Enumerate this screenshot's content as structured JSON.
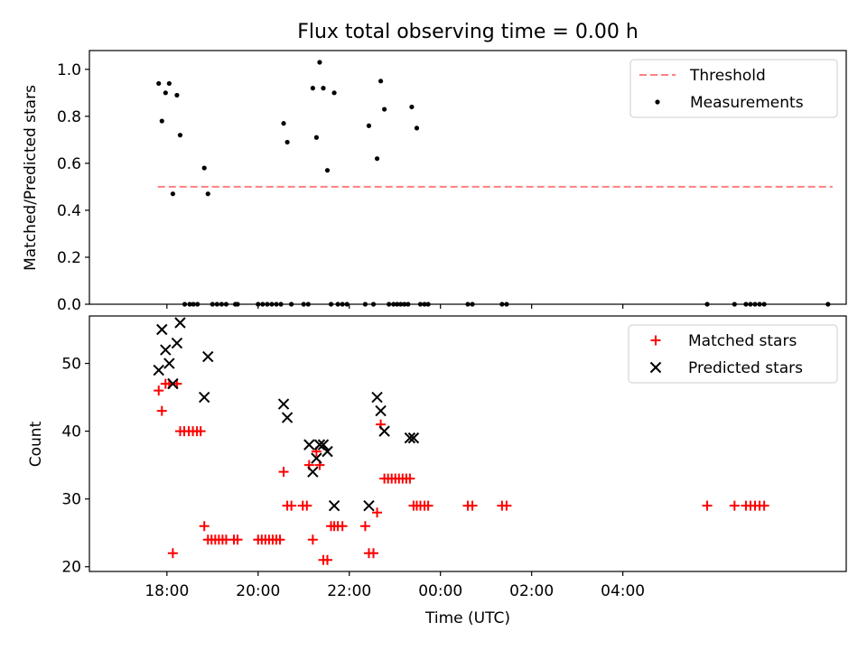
{
  "chart_data": {
    "type": "scatter",
    "title": "Flux total observing time = 0.00 h",
    "xlabel": "Time (UTC)",
    "x_unit": "hours since 00:00 UTC of first night",
    "xlim": [
      16.3,
      32.9
    ],
    "x_ticks": [
      {
        "value": 18,
        "label": "18:00"
      },
      {
        "value": 20,
        "label": "20:00"
      },
      {
        "value": 22,
        "label": "22:00"
      },
      {
        "value": 24,
        "label": "00:00"
      },
      {
        "value": 26,
        "label": "02:00"
      },
      {
        "value": 28,
        "label": "04:00"
      }
    ],
    "panels": [
      {
        "id": "ratio",
        "ylabel": "Matched/Predicted stars",
        "ylim": [
          0.0,
          1.08
        ],
        "y_ticks": [
          {
            "value": 0.0,
            "label": "0.0"
          },
          {
            "value": 0.2,
            "label": "0.2"
          },
          {
            "value": 0.4,
            "label": "0.4"
          },
          {
            "value": 0.6,
            "label": "0.6"
          },
          {
            "value": 0.8,
            "label": "0.8"
          },
          {
            "value": 1.0,
            "label": "1.0"
          }
        ],
        "legend_position": "top-right",
        "series": [
          {
            "name": "Threshold",
            "kind": "line",
            "style": "dashed",
            "color": "#ff7f7f",
            "x": [
              17.8,
              32.6
            ],
            "y": [
              0.5,
              0.5
            ]
          },
          {
            "name": "Measurements",
            "kind": "scatter",
            "marker": "dot",
            "color": "#000000",
            "x": [
              17.82,
              17.89,
              17.97,
              18.05,
              18.13,
              18.22,
              18.29,
              18.39,
              18.5,
              18.58,
              18.67,
              18.82,
              18.9,
              19.0,
              19.1,
              19.2,
              19.3,
              19.5,
              19.55,
              20.0,
              20.1,
              20.2,
              20.3,
              20.4,
              20.5,
              20.56,
              20.64,
              20.73,
              21.0,
              21.1,
              21.2,
              21.28,
              21.35,
              21.43,
              21.52,
              21.6,
              21.67,
              21.75,
              21.85,
              21.95,
              22.35,
              22.43,
              22.53,
              22.61,
              22.69,
              22.77,
              22.87,
              22.97,
              23.05,
              23.13,
              23.21,
              23.29,
              23.37,
              23.48,
              23.56,
              23.65,
              23.73,
              24.6,
              24.7,
              25.35,
              25.45,
              29.85,
              30.45,
              30.7,
              30.8,
              30.9,
              31.0,
              31.1,
              32.5
            ],
            "y": [
              0.94,
              0.78,
              0.9,
              0.94,
              0.47,
              0.89,
              0.72,
              0.0,
              0.0,
              0.0,
              0.0,
              0.58,
              0.47,
              0.0,
              0.0,
              0.0,
              0.0,
              0.0,
              0.0,
              0.0,
              0.0,
              0.0,
              0.0,
              0.0,
              0.0,
              0.77,
              0.69,
              0.0,
              0.0,
              0.0,
              0.92,
              0.71,
              1.03,
              0.92,
              0.57,
              0.0,
              0.9,
              0.0,
              0.0,
              0.0,
              0.0,
              0.76,
              0.0,
              0.62,
              0.95,
              0.83,
              0.0,
              0.0,
              0.0,
              0.0,
              0.0,
              0.0,
              0.84,
              0.75,
              0.0,
              0.0,
              0.0,
              0.0,
              0.0,
              0.0,
              0.0,
              0.0,
              0.0,
              0.0,
              0.0,
              0.0,
              0.0,
              0.0,
              0.0
            ]
          }
        ]
      },
      {
        "id": "counts",
        "ylabel": "Count",
        "ylim": [
          19.3,
          57.0
        ],
        "y_ticks": [
          {
            "value": 20,
            "label": "20"
          },
          {
            "value": 30,
            "label": "30"
          },
          {
            "value": 40,
            "label": "40"
          },
          {
            "value": 50,
            "label": "50"
          }
        ],
        "legend_position": "top-right",
        "series": [
          {
            "name": "Matched stars",
            "kind": "scatter",
            "marker": "plus",
            "color": "#ff0000",
            "x": [
              17.82,
              17.89,
              17.97,
              18.05,
              18.13,
              18.22,
              18.29,
              18.38,
              18.48,
              18.57,
              18.66,
              18.74,
              18.82,
              18.9,
              18.98,
              19.06,
              19.14,
              19.22,
              19.3,
              19.47,
              19.55,
              20.0,
              20.08,
              20.16,
              20.24,
              20.32,
              20.4,
              20.48,
              20.56,
              20.64,
              20.73,
              20.98,
              21.07,
              21.12,
              21.2,
              21.28,
              21.35,
              21.43,
              21.52,
              21.6,
              21.67,
              21.75,
              21.85,
              22.35,
              22.43,
              22.53,
              22.61,
              22.69,
              22.77,
              22.85,
              22.93,
              23.01,
              23.09,
              23.17,
              23.25,
              23.33,
              23.41,
              23.48,
              23.56,
              23.65,
              23.73,
              24.6,
              24.7,
              25.35,
              25.45,
              29.85,
              30.45,
              30.7,
              30.8,
              30.9,
              31.0,
              31.1
            ],
            "y": [
              46,
              43,
              47,
              47,
              22,
              47,
              40,
              40,
              40,
              40,
              40,
              40,
              26,
              24,
              24,
              24,
              24,
              24,
              24,
              24,
              24,
              24,
              24,
              24,
              24,
              24,
              24,
              24,
              34,
              29,
              29,
              29,
              29,
              35,
              24,
              37,
              35,
              21,
              21,
              26,
              26,
              26,
              26,
              26,
              22,
              22,
              28,
              41,
              33,
              33,
              33,
              33,
              33,
              33,
              33,
              33,
              29,
              29,
              29,
              29,
              29,
              29,
              29,
              29,
              29,
              29,
              29,
              29,
              29,
              29,
              29,
              29
            ]
          },
          {
            "name": "Predicted stars",
            "kind": "scatter",
            "marker": "x",
            "color": "#000000",
            "x": [
              17.82,
              17.89,
              17.97,
              18.05,
              18.13,
              18.22,
              18.29,
              18.82,
              18.9,
              20.56,
              20.64,
              21.12,
              21.2,
              21.28,
              21.35,
              21.43,
              21.52,
              21.67,
              22.43,
              22.61,
              22.69,
              22.77,
              23.33,
              23.41
            ],
            "y": [
              49,
              55,
              52,
              50,
              47,
              53,
              56,
              45,
              51,
              44,
              42,
              38,
              34,
              36,
              38,
              38,
              37,
              29,
              29,
              45,
              43,
              40,
              39,
              39
            ]
          }
        ]
      }
    ]
  }
}
